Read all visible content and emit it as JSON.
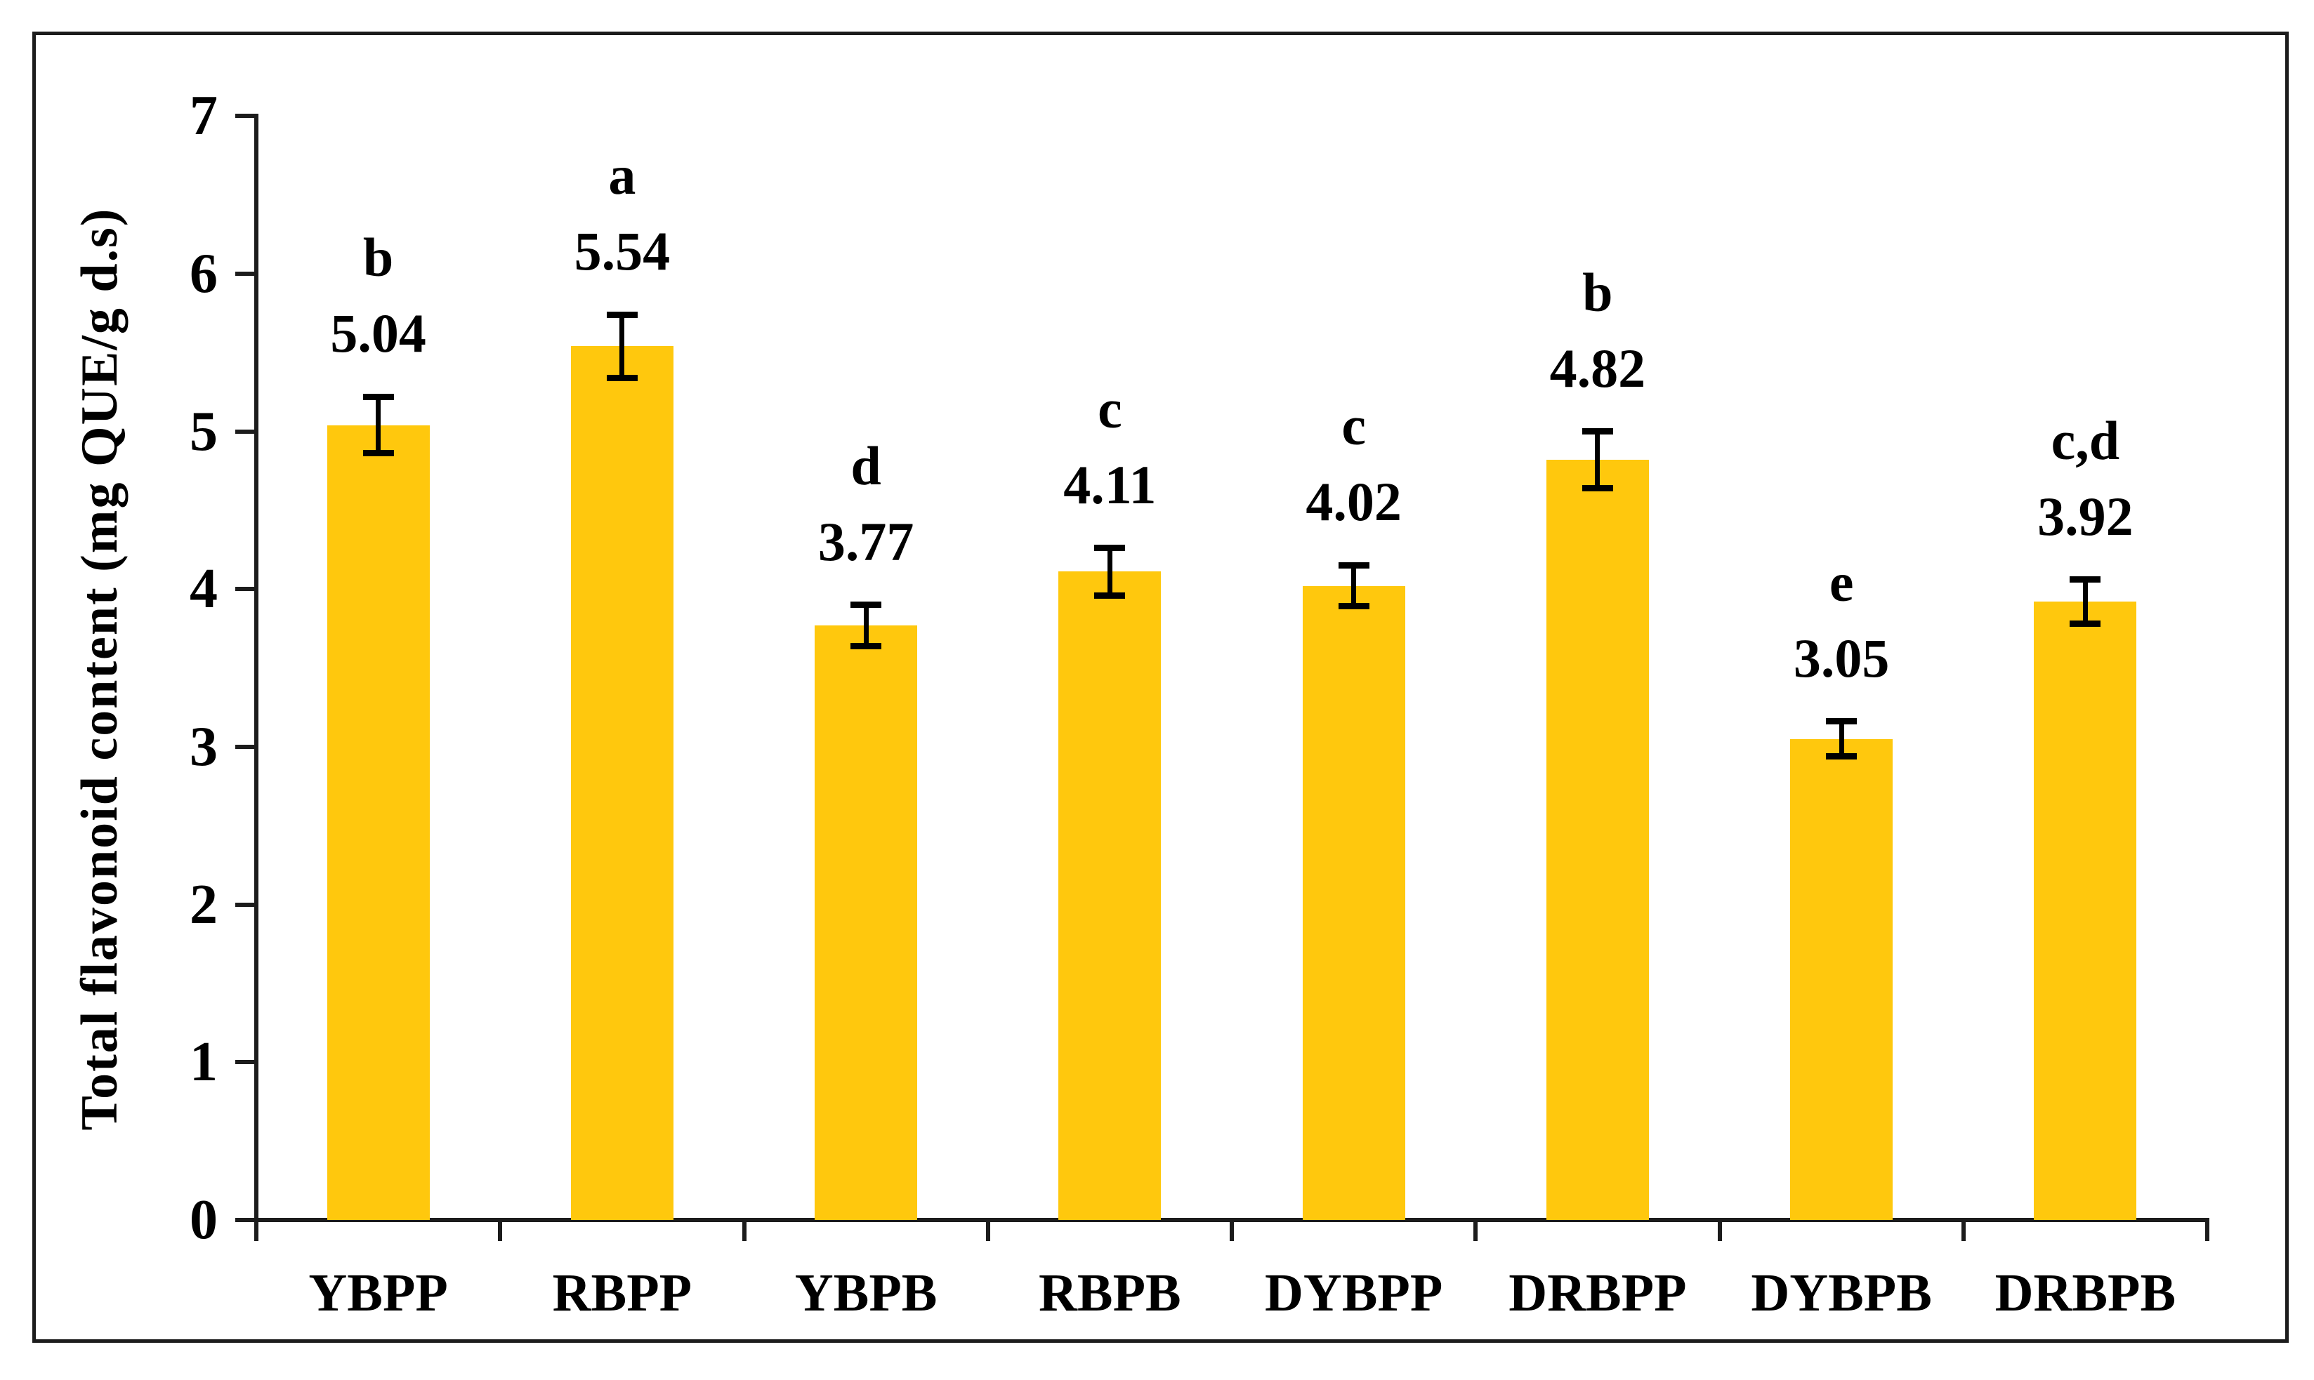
{
  "chart_data": {
    "type": "bar",
    "title": "",
    "ylabel": "Total flavonoid content (mg QUE/g d.s)",
    "xlabel": "",
    "ylim": [
      0,
      7
    ],
    "yticks": [
      0,
      1,
      2,
      3,
      4,
      5,
      6,
      7
    ],
    "grid": false,
    "legend": "none",
    "bar_color": "#FFC80D",
    "axis_color": "#1c1c1c",
    "error_bar_color": "#000000",
    "categories": [
      "YBPP",
      "RBPP",
      "YBPB",
      "RBPB",
      "DYBPP",
      "DRBPP",
      "DYBPB",
      "DRBPB"
    ],
    "values": [
      5.04,
      5.54,
      3.77,
      4.11,
      4.02,
      4.82,
      3.05,
      3.92
    ],
    "value_labels": [
      "5.04",
      "5.54",
      "3.77",
      "4.11",
      "4.02",
      "4.82",
      "3.05",
      "3.92"
    ],
    "errors": [
      0.18,
      0.2,
      0.13,
      0.15,
      0.13,
      0.18,
      0.11,
      0.14
    ],
    "significance_letters": [
      "b",
      "a",
      "d",
      "c",
      "c",
      "b",
      "e",
      "c,d"
    ]
  }
}
